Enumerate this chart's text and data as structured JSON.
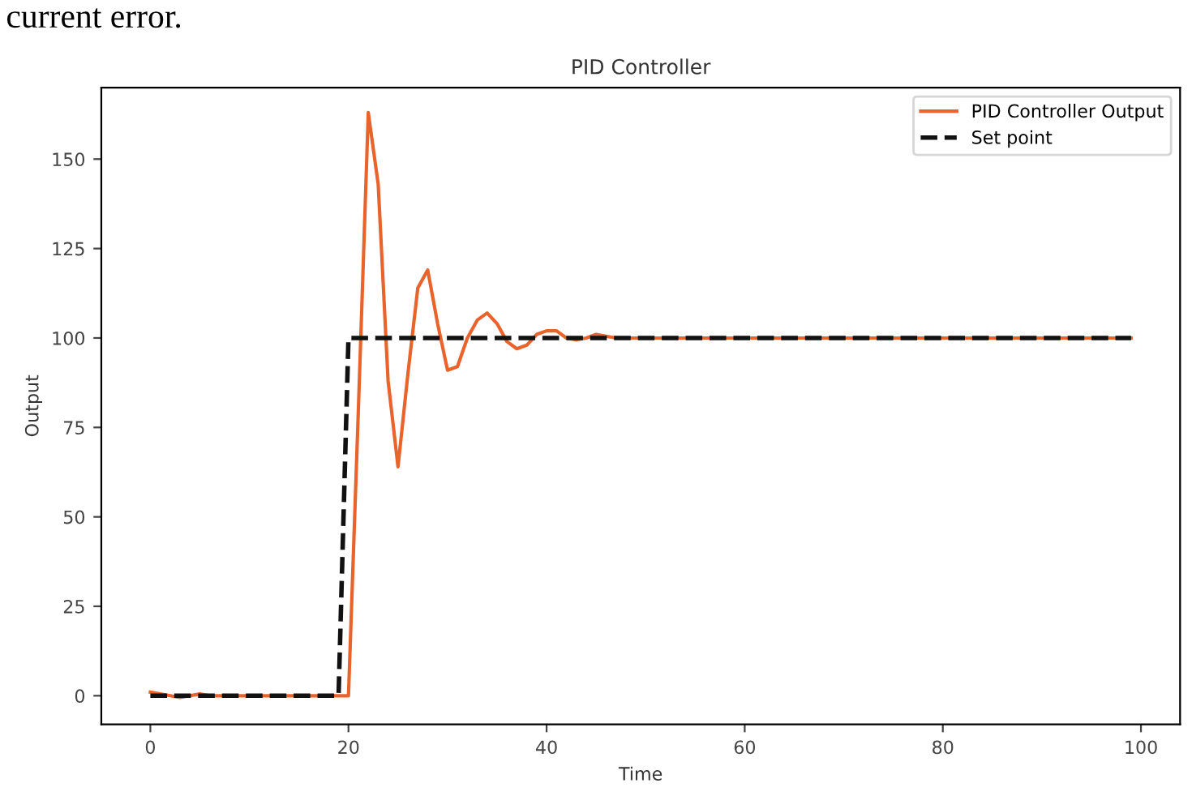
{
  "chart_data": {
    "type": "line",
    "title": "PID Controller",
    "xlabel": "Time",
    "ylabel": "Output",
    "annotations": [
      "current error."
    ],
    "series": [
      {
        "name": "PID Controller Output",
        "color": "#e8642c",
        "line_style": "solid",
        "x": [
          0,
          1,
          2,
          3,
          4,
          5,
          6,
          7,
          8,
          9,
          10,
          11,
          12,
          13,
          14,
          15,
          16,
          17,
          18,
          19,
          20,
          21,
          22,
          23,
          24,
          25,
          26,
          27,
          28,
          29,
          30,
          31,
          32,
          33,
          34,
          35,
          36,
          37,
          38,
          39,
          40,
          41,
          42,
          43,
          44,
          45,
          46,
          47,
          48,
          60,
          80,
          99
        ],
        "values": [
          1,
          0.5,
          0,
          -0.5,
          0,
          0.5,
          0,
          0,
          0,
          0,
          0,
          0,
          0,
          0,
          0,
          0,
          0,
          0,
          0,
          0,
          0,
          80,
          163,
          143,
          88,
          64,
          90,
          114,
          119,
          104,
          91,
          92,
          100,
          105,
          107,
          104,
          99,
          97,
          98,
          101,
          102,
          102,
          100,
          99.5,
          100,
          101,
          100.5,
          100,
          100,
          100,
          100,
          100
        ]
      },
      {
        "name": "Set point",
        "color": "#111111",
        "line_style": "dashed",
        "x": [
          0,
          19,
          20,
          99
        ],
        "values": [
          0,
          0,
          100,
          100
        ]
      }
    ],
    "xlim": [
      -4.95,
      103.95
    ],
    "ylim": [
      -8,
      170
    ],
    "xticks": [
      0,
      20,
      40,
      60,
      80,
      100
    ],
    "yticks": [
      0,
      25,
      50,
      75,
      100,
      125,
      150
    ],
    "legend": "top right",
    "grid": false
  }
}
